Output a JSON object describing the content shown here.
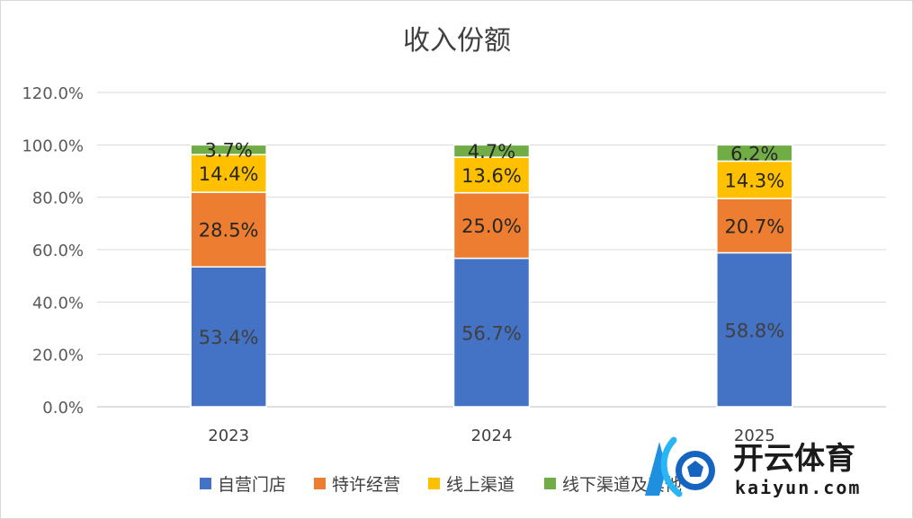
{
  "chart_data": {
    "type": "bar",
    "stacked": true,
    "title": "收入份额",
    "categories": [
      "2023",
      "2024",
      "2025"
    ],
    "series": [
      {
        "name": "自营门店",
        "values": [
          53.4,
          56.7,
          58.8
        ],
        "color": "#4472C4"
      },
      {
        "name": "特许经营",
        "values": [
          28.5,
          25.0,
          20.7
        ],
        "color": "#ED7D31"
      },
      {
        "name": "线上渠道",
        "values": [
          14.4,
          13.6,
          14.3
        ],
        "color": "#FFC000"
      },
      {
        "name": "线下渠道及其他",
        "values": [
          3.7,
          4.7,
          6.2
        ],
        "color": "#70AD47"
      }
    ],
    "ylim": [
      0,
      120
    ],
    "yticks": [
      "0.0%",
      "20.0%",
      "40.0%",
      "60.0%",
      "80.0%",
      "100.0%",
      "120.0%"
    ],
    "grid": true,
    "legend_position": "bottom"
  },
  "watermark": {
    "brand_text": "开云体育",
    "domain_text": "kaiyun.com"
  }
}
